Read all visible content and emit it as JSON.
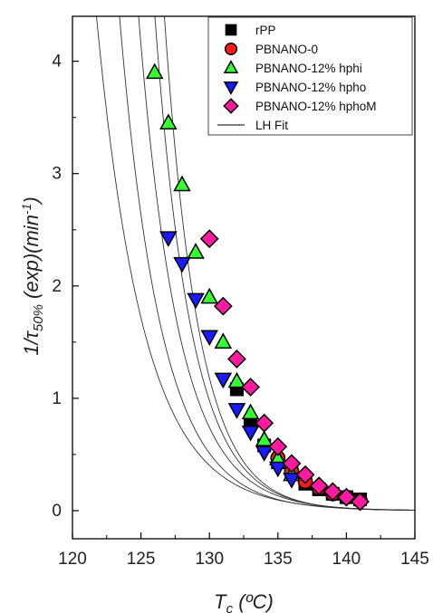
{
  "chart_data": {
    "type": "scatter",
    "xlabel": {
      "main": "T",
      "sub": "c",
      "unit": " (ºC)"
    },
    "ylabel": {
      "pre": "1/",
      "tau": "τ",
      "sub": "50%",
      "mid": " (exp)(min",
      "sup": "-1",
      "post": ")"
    },
    "xlim": [
      120,
      145
    ],
    "ylim": [
      -0.25,
      4.4
    ],
    "xticks": [
      {
        "value": 120,
        "label": "120"
      },
      {
        "value": 125,
        "label": "125"
      },
      {
        "value": 130,
        "label": "130"
      },
      {
        "value": 135,
        "label": "135"
      },
      {
        "value": 140,
        "label": "140"
      },
      {
        "value": 145,
        "label": "145"
      }
    ],
    "yticks": [
      {
        "value": 0,
        "label": "0"
      },
      {
        "value": 1,
        "label": "1"
      },
      {
        "value": 2,
        "label": "2"
      },
      {
        "value": 3,
        "label": "3"
      },
      {
        "value": 4,
        "label": "4"
      }
    ],
    "legend_position": "top-right",
    "series": [
      {
        "name": "rPP",
        "marker": "square",
        "color": "#000000",
        "x": [
          132,
          133,
          134,
          135,
          136,
          137,
          138,
          139,
          140,
          141
        ],
        "y": [
          1.08,
          0.79,
          0.58,
          0.43,
          0.33,
          0.24,
          0.19,
          0.15,
          0.12,
          0.1
        ]
      },
      {
        "name": "PBNANO-0",
        "marker": "circle",
        "color": "#ff1a1a",
        "x": [
          135,
          136,
          137,
          138,
          139,
          140,
          141
        ],
        "y": [
          0.47,
          0.35,
          0.26,
          0.2,
          0.15,
          0.12,
          0.09
        ]
      },
      {
        "name": "PBNANO-12% hphi",
        "marker": "triangle-up",
        "color": "#33ff33",
        "x": [
          126,
          127,
          128,
          129,
          130,
          131,
          132,
          133,
          134,
          135,
          136
        ],
        "y": [
          3.9,
          3.45,
          2.9,
          2.3,
          1.9,
          1.5,
          1.15,
          0.87,
          0.63,
          0.46,
          0.32
        ]
      },
      {
        "name": "PBNANO-12% hpho",
        "marker": "triangle-down",
        "color": "#1a1aff",
        "x": [
          127,
          128,
          129,
          130,
          131,
          132,
          133,
          134,
          135,
          136
        ],
        "y": [
          2.43,
          2.2,
          1.88,
          1.55,
          1.17,
          0.9,
          0.7,
          0.52,
          0.38,
          0.28
        ]
      },
      {
        "name": "PBNANO-12% hphoM",
        "marker": "diamond",
        "color": "#ff1aa0",
        "x": [
          130,
          131,
          132,
          133,
          134,
          135,
          136,
          137,
          138,
          139,
          140,
          141
        ],
        "y": [
          2.42,
          1.82,
          1.35,
          1.1,
          0.78,
          0.57,
          0.42,
          0.32,
          0.22,
          0.17,
          0.12,
          0.08
        ]
      },
      {
        "name": "LH Fit",
        "marker": "line",
        "color": "#333333"
      }
    ],
    "fit_curves": [
      {
        "y0": 4.6,
        "t0": 121.6,
        "tau": 3.45
      },
      {
        "y0": 4.6,
        "t0": 123.3,
        "tau": 3.05
      },
      {
        "y0": 4.6,
        "t0": 124.7,
        "tau": 2.9
      },
      {
        "y0": 4.6,
        "t0": 125.9,
        "tau": 2.65
      },
      {
        "y0": 4.6,
        "t0": 126.6,
        "tau": 2.5
      }
    ]
  }
}
